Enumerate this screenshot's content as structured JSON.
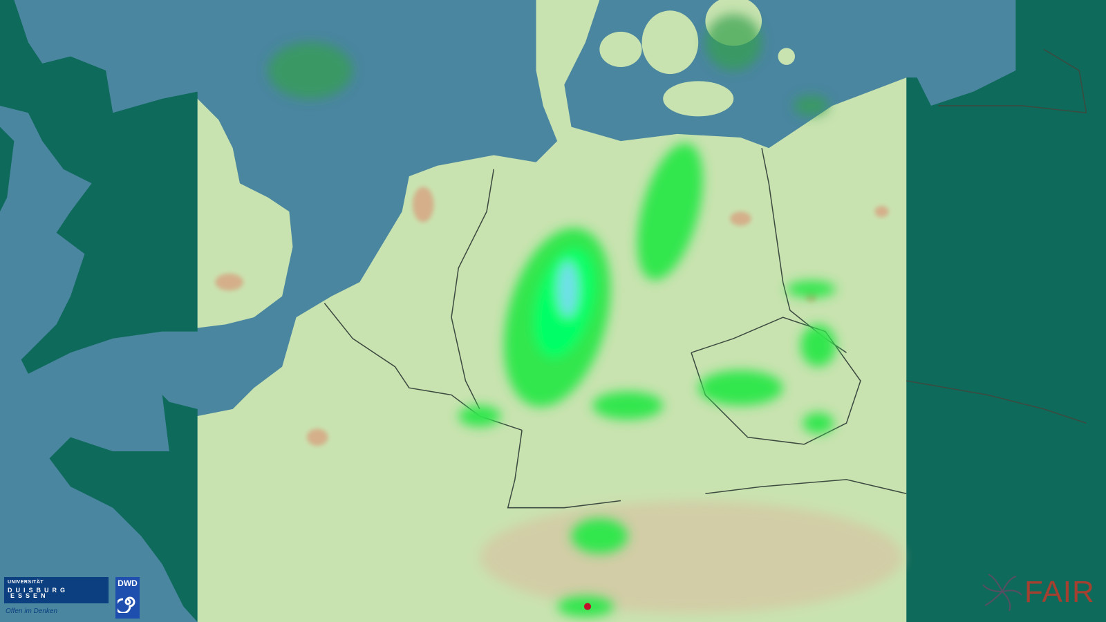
{
  "map": {
    "type": "weather radar precipitation map",
    "region": "Central Europe",
    "colors": {
      "sea": "#4a86a0",
      "outside_domain_land": "#0e6a5a",
      "domain_land": "#c9e3b0",
      "urban": "#d99a7a",
      "rain_light": "#33e64d",
      "rain_moderate": "#00ff66",
      "rain_heavy": "#6fe0e8",
      "rain_extreme": "#c0102a",
      "borders": "#3c4a40"
    }
  },
  "logos": {
    "ude": {
      "line1": "UNIVERSITÄT",
      "line2": "DUISBURG",
      "line3": "ESSEN",
      "slogan": "Offen im Denken"
    },
    "dwd": {
      "text": "DWD"
    },
    "fair": {
      "text": "FAIR"
    }
  }
}
